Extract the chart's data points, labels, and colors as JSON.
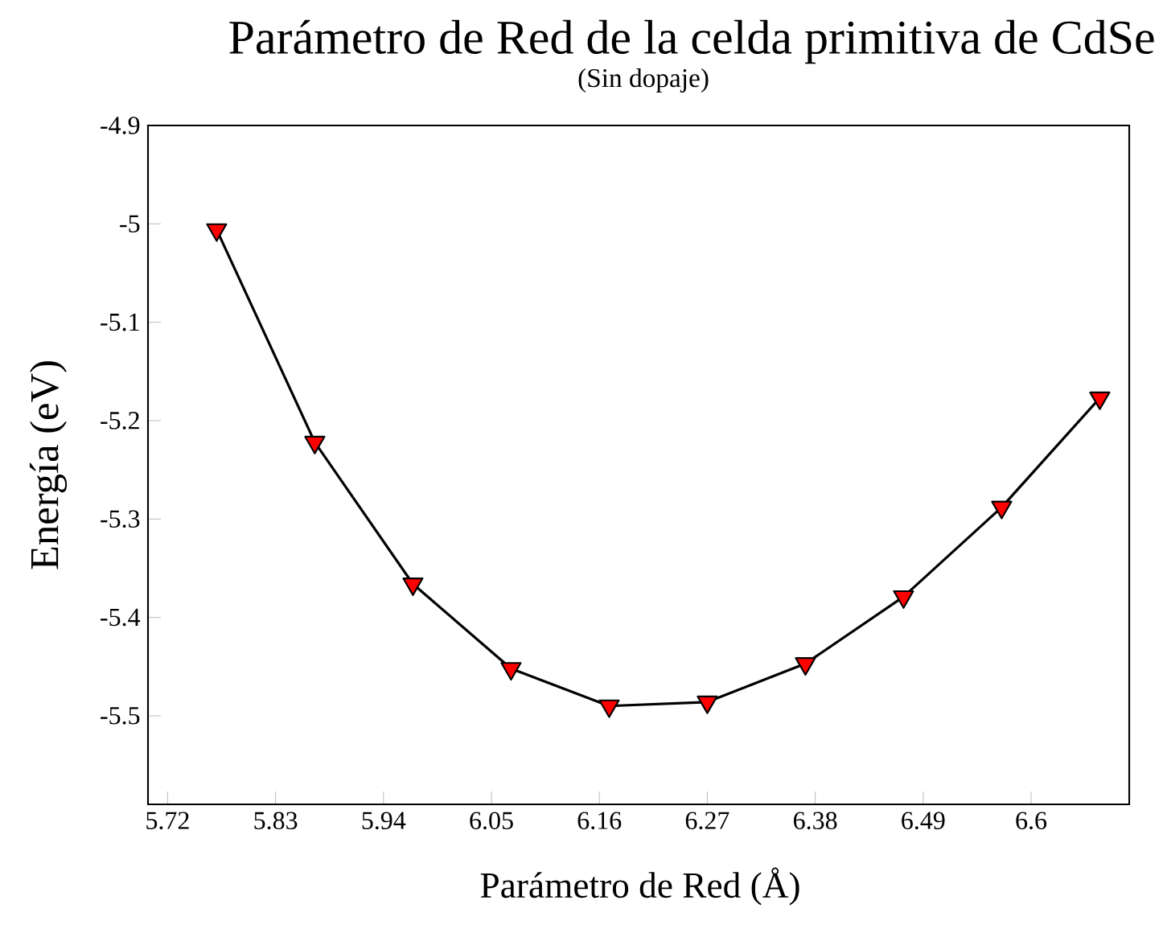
{
  "chart_data": {
    "type": "line",
    "title": "Parámetro de Red de la celda primitiva de CdSe",
    "subtitle": "(Sin dopaje)",
    "xlabel": "Parámetro de Red (Å)",
    "ylabel": "Energía (eV)",
    "x": [
      5.77,
      5.87,
      5.97,
      6.07,
      6.17,
      6.27,
      6.37,
      6.47,
      6.57,
      6.67
    ],
    "series": [
      {
        "color": "#ff0000",
        "values": [
          -5.006,
          -5.222,
          -5.366,
          -5.452,
          -5.49,
          -5.486,
          -5.447,
          -5.379,
          -5.288,
          -5.177
        ]
      }
    ],
    "xlim": [
      5.7,
      6.7
    ],
    "ylim": [
      -5.59,
      -4.9
    ],
    "xticks": [
      5.72,
      5.83,
      5.94,
      6.05,
      6.16,
      6.27,
      6.38,
      6.49,
      6.6
    ],
    "yticks": [
      -5.5,
      -5.4,
      -5.3,
      -5.2,
      -5.1,
      -5,
      -4.9
    ],
    "marker": "triangle",
    "line_style": "solid",
    "grid": false
  }
}
